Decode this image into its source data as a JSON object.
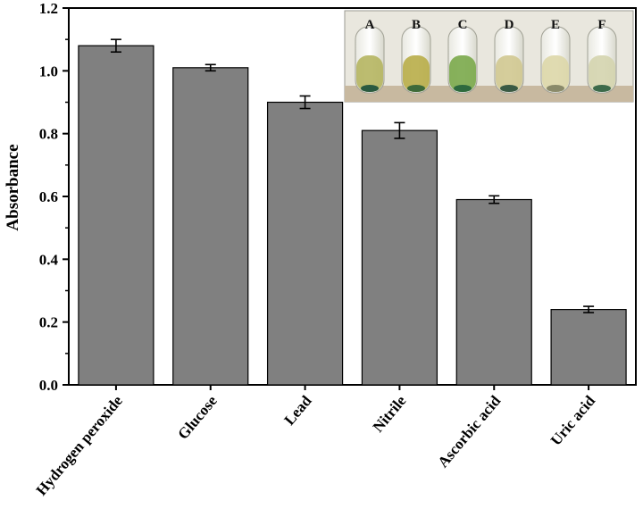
{
  "chart_data": {
    "type": "bar",
    "categories": [
      "Hydrogen peroxide",
      "Glucose",
      "Lead",
      "Nitrile",
      "Ascorbic acid",
      "Uric acid"
    ],
    "values": [
      1.08,
      1.01,
      0.9,
      0.81,
      0.59,
      0.24
    ],
    "errors": [
      0.02,
      0.01,
      0.02,
      0.025,
      0.012,
      0.01
    ],
    "xlabel": "",
    "ylabel": "Absorbance",
    "ylim": [
      0.0,
      1.2
    ],
    "yticks": [
      "0.0",
      "0.2",
      "0.4",
      "0.6",
      "0.8",
      "1.0",
      "1.2"
    ],
    "bar_color": "#808080",
    "grid": false,
    "inset": {
      "labels": [
        "A",
        "B",
        "C",
        "D",
        "E",
        "F"
      ]
    }
  }
}
